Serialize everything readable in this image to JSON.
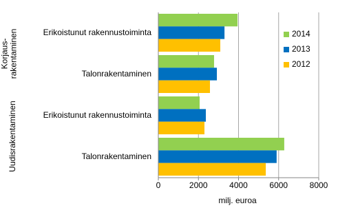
{
  "chart_data": {
    "type": "hbar",
    "categories": [
      "Erikoistunut rakennustoiminta",
      "Talonrakentaminen",
      "Erikoistunut rakennustoiminta",
      "Talonrakentaminen"
    ],
    "groups": [
      {
        "label": [
          "Korjaus-",
          "rakentaminen"
        ]
      },
      {
        "label": [
          "Uudisrakentaminen"
        ]
      }
    ],
    "series": [
      {
        "name": "2014",
        "color": "#92d050",
        "values": [
          3950,
          2780,
          2060,
          6280
        ]
      },
      {
        "name": "2013",
        "color": "#0070c0",
        "values": [
          3300,
          2920,
          2370,
          5900
        ]
      },
      {
        "name": "2012",
        "color": "#ffc000",
        "values": [
          3090,
          2575,
          2300,
          5360
        ]
      }
    ],
    "xlabel": "milj. euroa",
    "xlim": [
      0,
      8000
    ],
    "xticks": [
      0,
      2000,
      4000,
      6000,
      8000
    ],
    "grid": true,
    "legend": "right"
  }
}
